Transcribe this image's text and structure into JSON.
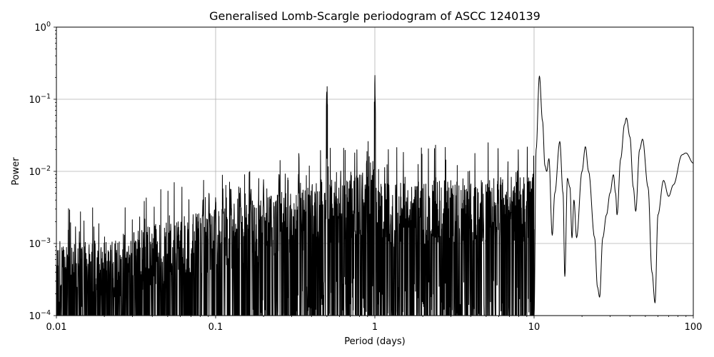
{
  "chart_data": {
    "type": "line",
    "title": "Generalised Lomb-Scargle periodogram of ASCC 1240139",
    "xlabel": "Period (days)",
    "ylabel": "Power",
    "xscale": "log",
    "yscale": "log",
    "xlim": [
      0.01,
      100
    ],
    "ylim": [
      0.0001,
      1
    ],
    "grid": true,
    "x_ticks": [
      "0.01",
      "0.1",
      "1",
      "10",
      "100"
    ],
    "y_ticks": [
      {
        "base": "10",
        "exp": "−4"
      },
      {
        "base": "10",
        "exp": "−3"
      },
      {
        "base": "10",
        "exp": "−2"
      },
      {
        "base": "10",
        "exp": "−1"
      },
      {
        "base": "10",
        "exp": "0"
      }
    ],
    "line_color": "#000000",
    "peaks": [
      {
        "period": 0.25,
        "power": 0.012
      },
      {
        "period": 0.333,
        "power": 0.018
      },
      {
        "period": 0.5,
        "power": 0.23
      },
      {
        "period": 1.0,
        "power": 0.24
      },
      {
        "period": 10.8,
        "power": 0.21
      },
      {
        "period": 14.5,
        "power": 0.026
      },
      {
        "period": 21.0,
        "power": 0.022
      },
      {
        "period": 38.0,
        "power": 0.055
      },
      {
        "period": 48.0,
        "power": 0.028
      },
      {
        "period": 90.0,
        "power": 0.018
      }
    ],
    "long_period_curve": [
      [
        10.0,
        0.0001
      ],
      [
        10.3,
        0.02
      ],
      [
        10.8,
        0.21
      ],
      [
        11.3,
        0.05
      ],
      [
        11.7,
        0.012
      ],
      [
        12.0,
        0.01
      ],
      [
        12.4,
        0.015
      ],
      [
        13.0,
        0.0013
      ],
      [
        13.5,
        0.005
      ],
      [
        14.5,
        0.026
      ],
      [
        15.2,
        0.005
      ],
      [
        15.6,
        0.00035
      ],
      [
        16.2,
        0.008
      ],
      [
        16.8,
        0.006
      ],
      [
        17.3,
        0.0012
      ],
      [
        17.8,
        0.004
      ],
      [
        18.5,
        0.0012
      ],
      [
        20.0,
        0.01
      ],
      [
        21.0,
        0.022
      ],
      [
        22.0,
        0.01
      ],
      [
        24.0,
        0.0012
      ],
      [
        25.0,
        0.00025
      ],
      [
        25.8,
        0.00018
      ],
      [
        27.0,
        0.0012
      ],
      [
        28.5,
        0.0025
      ],
      [
        30.0,
        0.005
      ],
      [
        31.5,
        0.009
      ],
      [
        32.5,
        0.005
      ],
      [
        33.2,
        0.0025
      ],
      [
        35.0,
        0.015
      ],
      [
        37.0,
        0.045
      ],
      [
        38.0,
        0.055
      ],
      [
        40.0,
        0.03
      ],
      [
        42.0,
        0.006
      ],
      [
        43.5,
        0.0028
      ],
      [
        46.0,
        0.02
      ],
      [
        48.0,
        0.028
      ],
      [
        52.0,
        0.006
      ],
      [
        55.0,
        0.0004
      ],
      [
        57.5,
        0.00015
      ],
      [
        60.0,
        0.0025
      ],
      [
        65.0,
        0.0075
      ],
      [
        70.0,
        0.0045
      ],
      [
        75.0,
        0.0065
      ],
      [
        85.0,
        0.017
      ],
      [
        90.0,
        0.018
      ],
      [
        100.0,
        0.013
      ]
    ]
  }
}
